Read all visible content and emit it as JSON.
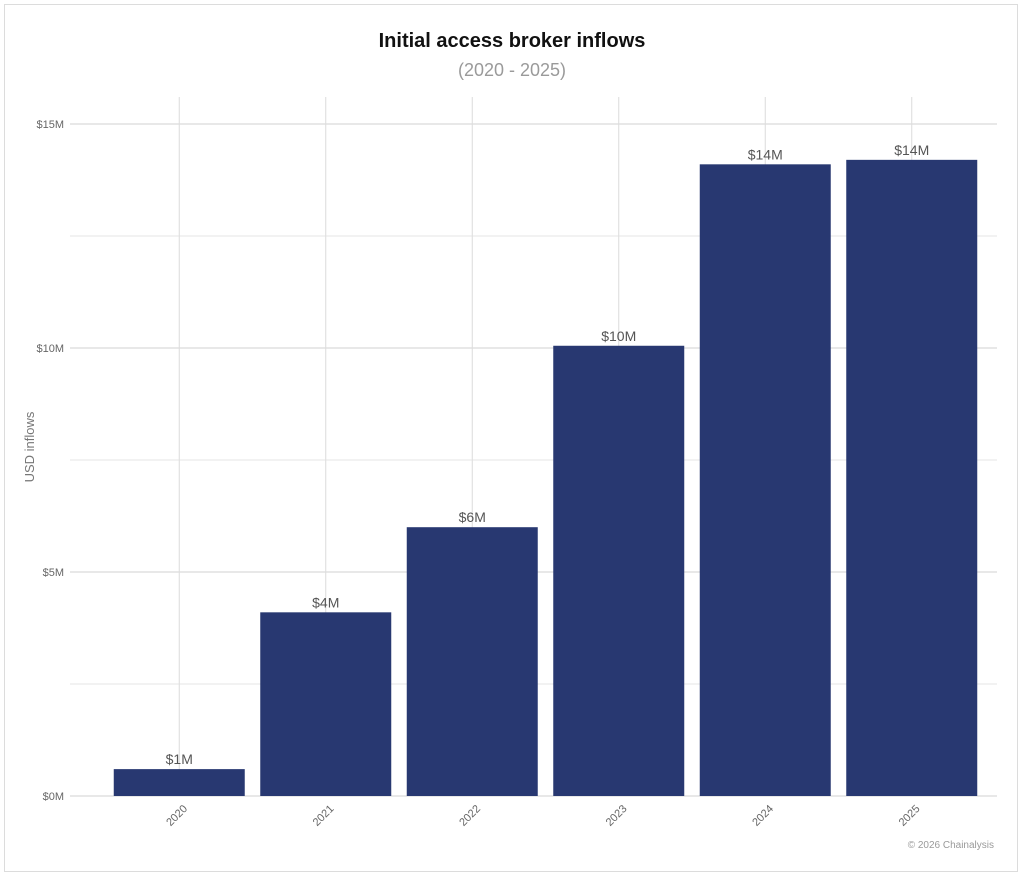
{
  "chart_data": {
    "type": "bar",
    "title": "Initial access broker inflows",
    "subtitle": "(2020 - 2025)",
    "xlabel": "",
    "ylabel": "USD inflows",
    "categories": [
      "2020",
      "2021",
      "2022",
      "2023",
      "2024",
      "2025"
    ],
    "values": [
      0.6,
      4.1,
      6.0,
      10.05,
      14.1,
      14.2
    ],
    "data_labels": [
      "$1M",
      "$4M",
      "$6M",
      "$10M",
      "$14M",
      "$14M"
    ],
    "yticks": [
      0,
      5,
      10,
      15
    ],
    "ytick_labels": [
      "$0M",
      "$5M",
      "$10M",
      "$15M"
    ],
    "ylim": [
      0,
      15.6
    ],
    "grid": true,
    "bar_color": "#283871"
  },
  "credit": "© 2026 Chainalysis"
}
